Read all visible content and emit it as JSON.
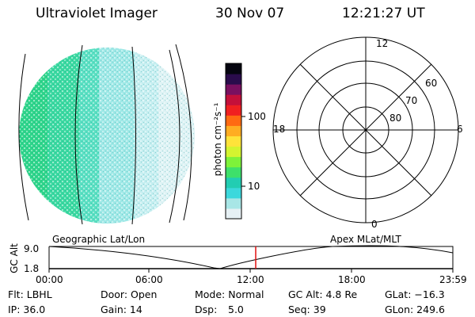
{
  "header": {
    "instrument": "Ultraviolet Imager",
    "date": "30 Nov 07",
    "time": "12:21:27 UT"
  },
  "colorbar": {
    "unit_label": "photon cm⁻²s⁻¹",
    "ticks": [
      "100",
      "10"
    ],
    "scale": "log",
    "colors": [
      "#e6f0f4",
      "#a8e6e6",
      "#3cd8dc",
      "#22cdb2",
      "#3ee06a",
      "#7ef23a",
      "#d4f430",
      "#ffe33a",
      "#ffad22",
      "#ff6a12",
      "#f02020",
      "#c4103a",
      "#7a1060",
      "#2a0c4c",
      "#050510"
    ]
  },
  "polar": {
    "mlt_labels": {
      "top": "12",
      "left": "18",
      "right": "6",
      "bottom": "0"
    },
    "lat_labels": [
      "60",
      "70",
      "80"
    ]
  },
  "timeline": {
    "left_label": "Geographic Lat/Lon",
    "right_label": "Apex MLat/MLT",
    "axis_label": "GC Alt",
    "y_ticks": [
      "9.0",
      "1.8"
    ],
    "x_ticks": [
      "00:00",
      "06:00",
      "12:00",
      "18:00",
      "23:59"
    ],
    "marker_color": "#e01010"
  },
  "status": {
    "flt": "Flt: LBHL",
    "ip": "IP: 36.0",
    "door": "Door: Open",
    "gain": "Gain: 14",
    "mode": "Mode: Normal",
    "dsp_label": "Dsp:",
    "dsp_value": "5.0",
    "gc_alt": "GC Alt: 4.8 Re",
    "seq": "Seq: 39",
    "glat": "GLat: −16.3",
    "glon": "GLon: 249.6"
  }
}
